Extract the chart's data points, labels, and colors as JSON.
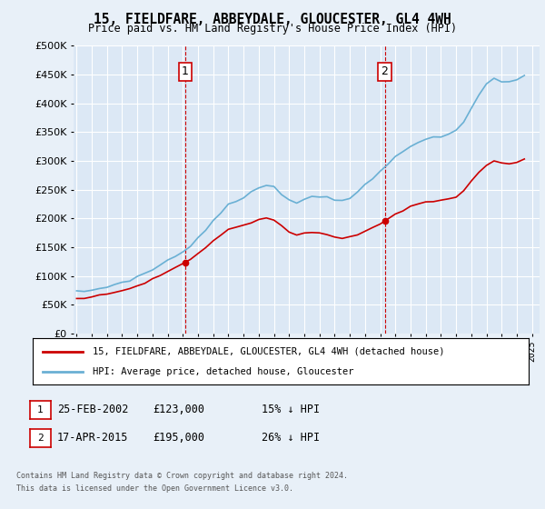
{
  "title": "15, FIELDFARE, ABBEYDALE, GLOUCESTER, GL4 4WH",
  "subtitle": "Price paid vs. HM Land Registry's House Price Index (HPI)",
  "legend_line1": "15, FIELDFARE, ABBEYDALE, GLOUCESTER, GL4 4WH (detached house)",
  "legend_line2": "HPI: Average price, detached house, Gloucester",
  "annotation1_label": "1",
  "annotation1_date": "25-FEB-2002",
  "annotation1_price": "£123,000",
  "annotation1_hpi": "15% ↓ HPI",
  "annotation1_year": 2002.15,
  "annotation1_value": 123000,
  "annotation2_label": "2",
  "annotation2_date": "17-APR-2015",
  "annotation2_price": "£195,000",
  "annotation2_hpi": "26% ↓ HPI",
  "annotation2_year": 2015.3,
  "annotation2_value": 195000,
  "hpi_color": "#6ab0d4",
  "price_color": "#cc0000",
  "bg_color": "#e8f0f8",
  "plot_bg": "#dce8f5",
  "grid_color": "#ffffff",
  "annotation_box_color": "#cc0000",
  "footnote_line1": "Contains HM Land Registry data © Crown copyright and database right 2024.",
  "footnote_line2": "This data is licensed under the Open Government Licence v3.0.",
  "ylim": [
    0,
    500000
  ],
  "yticks": [
    0,
    50000,
    100000,
    150000,
    200000,
    250000,
    300000,
    350000,
    400000,
    450000,
    500000
  ],
  "xlim_start": 1994.8,
  "xlim_end": 2025.5,
  "hpi_data_years": [
    1995.0,
    1995.5,
    1996.0,
    1996.5,
    1997.0,
    1997.5,
    1998.0,
    1998.5,
    1999.0,
    1999.5,
    2000.0,
    2000.5,
    2001.0,
    2001.5,
    2002.0,
    2002.5,
    2003.0,
    2003.5,
    2004.0,
    2004.5,
    2005.0,
    2005.5,
    2006.0,
    2006.5,
    2007.0,
    2007.5,
    2008.0,
    2008.5,
    2009.0,
    2009.5,
    2010.0,
    2010.5,
    2011.0,
    2011.5,
    2012.0,
    2012.5,
    2013.0,
    2013.5,
    2014.0,
    2014.5,
    2015.0,
    2015.5,
    2016.0,
    2016.5,
    2017.0,
    2017.5,
    2018.0,
    2018.5,
    2019.0,
    2019.5,
    2020.0,
    2020.5,
    2021.0,
    2021.5,
    2022.0,
    2022.5,
    2023.0,
    2023.5,
    2024.0,
    2024.5
  ],
  "hpi_data_values": [
    72000,
    73500,
    75000,
    77500,
    81000,
    85000,
    89000,
    93000,
    98000,
    104000,
    111000,
    119000,
    127000,
    134000,
    142000,
    153000,
    166000,
    179000,
    196000,
    211000,
    223000,
    229000,
    236000,
    244000,
    253000,
    259000,
    256000,
    244000,
    231000,
    227000,
    234000,
    237000,
    239000,
    237000,
    234000,
    232000,
    236000,
    244000,
    257000,
    269000,
    281000,
    294000,
    307000,
    317000,
    327000,
    334000,
    337000,
    339000,
    341000,
    347000,
    351000,
    367000,
    391000,
    414000,
    434000,
    444000,
    439000,
    437000,
    441000,
    447000
  ]
}
